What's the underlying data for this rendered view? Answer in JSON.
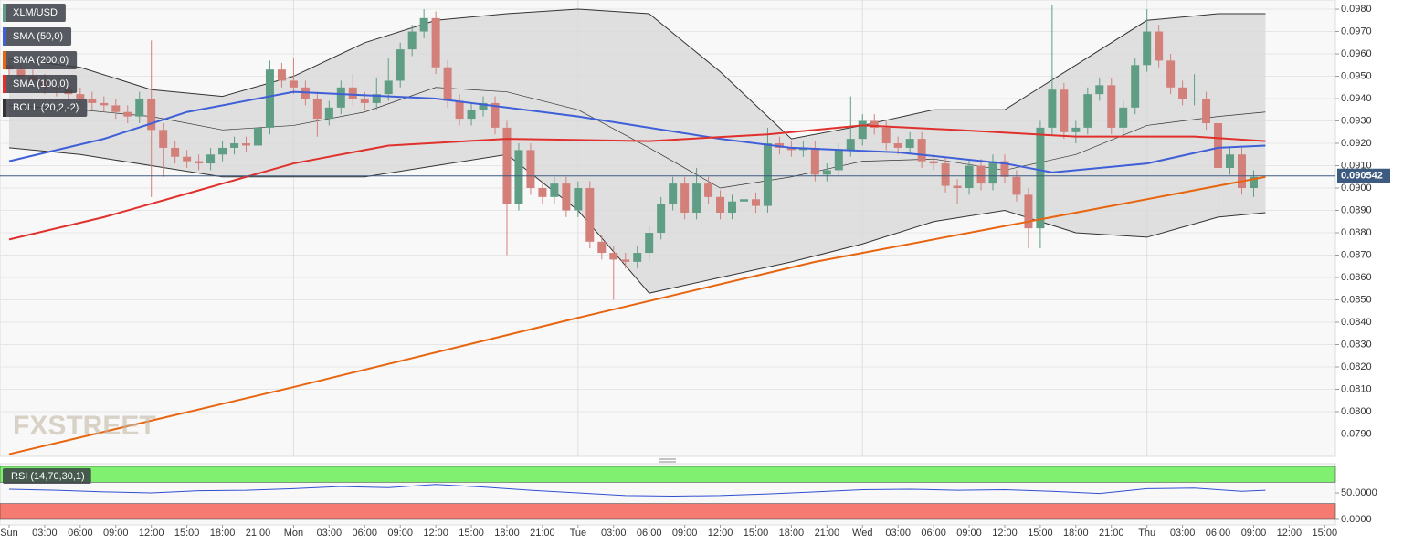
{
  "chart_data": [
    {
      "type": "candlestick",
      "name": "XLM/USD",
      "up_color": "#5f9e84",
      "down_color": "#d3807a",
      "watermark": "FXSTREET",
      "xlim": [
        -0.77,
        111.9
      ],
      "ylim": [
        0.078,
        0.09841
      ],
      "yticks": [
        {
          "value": 0.098,
          "label": "0.0980"
        },
        {
          "value": 0.097,
          "label": "0.0970"
        },
        {
          "value": 0.096,
          "label": "0.0960"
        },
        {
          "value": 0.095,
          "label": "0.0950"
        },
        {
          "value": 0.094,
          "label": "0.0940"
        },
        {
          "value": 0.093,
          "label": "0.0930"
        },
        {
          "value": 0.092,
          "label": "0.0920"
        },
        {
          "value": 0.091,
          "label": "0.0910"
        },
        {
          "value": 0.09,
          "label": "0.0900"
        },
        {
          "value": 0.089,
          "label": "0.0890"
        },
        {
          "value": 0.088,
          "label": "0.0880"
        },
        {
          "value": 0.087,
          "label": "0.0870"
        },
        {
          "value": 0.086,
          "label": "0.0860"
        },
        {
          "value": 0.085,
          "label": "0.0850"
        },
        {
          "value": 0.084,
          "label": "0.0840"
        },
        {
          "value": 0.083,
          "label": "0.0830"
        },
        {
          "value": 0.082,
          "label": "0.0820"
        },
        {
          "value": 0.081,
          "label": "0.0810"
        },
        {
          "value": 0.08,
          "label": "0.0800"
        },
        {
          "value": 0.079,
          "label": "0.0790"
        }
      ],
      "grid": true,
      "last_price": 0.090542,
      "last_price_color": "#3d5a80",
      "x": [
        0,
        1,
        2,
        3,
        4,
        5,
        6,
        7,
        8,
        9,
        10,
        11,
        12,
        13,
        14,
        15,
        16,
        17,
        18,
        19,
        20,
        21,
        22,
        23,
        24,
        25,
        26,
        27,
        28,
        29,
        30,
        31,
        32,
        33,
        34,
        35,
        36,
        37,
        38,
        39,
        40,
        41,
        42,
        43,
        44,
        45,
        46,
        47,
        48,
        49,
        50,
        51,
        52,
        53,
        54,
        55,
        56,
        57,
        58,
        59,
        60,
        61,
        62,
        63,
        64,
        65,
        66,
        67,
        68,
        69,
        70,
        71,
        72,
        73,
        74,
        75,
        76,
        77,
        78,
        79,
        80,
        81,
        82,
        83,
        84,
        85,
        86,
        87,
        88,
        89,
        90,
        91,
        92,
        93,
        94,
        95,
        96,
        97,
        98,
        99,
        100,
        101,
        102,
        103,
        104,
        105
      ],
      "open": [
        0.0955,
        0.0953,
        0.095,
        0.0948,
        0.0945,
        0.0944,
        0.0942,
        0.094,
        0.0938,
        0.0937,
        0.0934,
        0.0932,
        0.094,
        0.0926,
        0.0918,
        0.0914,
        0.0912,
        0.0911,
        0.0915,
        0.0918,
        0.092,
        0.0919,
        0.0927,
        0.0953,
        0.0948,
        0.0945,
        0.094,
        0.0931,
        0.0936,
        0.0945,
        0.094,
        0.0938,
        0.0942,
        0.0948,
        0.0962,
        0.097,
        0.0976,
        0.0954,
        0.0939,
        0.0931,
        0.0935,
        0.0938,
        0.0927,
        0.0893,
        0.0917,
        0.09,
        0.0896,
        0.0902,
        0.089,
        0.09,
        0.0876,
        0.0871,
        0.0868,
        0.0867,
        0.0871,
        0.088,
        0.0893,
        0.0902,
        0.0889,
        0.0902,
        0.0896,
        0.0889,
        0.0894,
        0.0895,
        0.0892,
        0.092,
        0.0918,
        0.0917,
        0.0918,
        0.0906,
        0.0908,
        0.0917,
        0.0922,
        0.093,
        0.0927,
        0.092,
        0.0918,
        0.0922,
        0.0912,
        0.0911,
        0.0901,
        0.09,
        0.091,
        0.0902,
        0.0912,
        0.0905,
        0.0897,
        0.0882,
        0.0927,
        0.0944,
        0.0925,
        0.0927,
        0.0942,
        0.0946,
        0.0927,
        0.0936,
        0.0955,
        0.097,
        0.0957,
        0.0945,
        0.094,
        0.094,
        0.0929,
        0.0909,
        0.0915,
        0.09
      ],
      "high": [
        0.0958,
        0.0956,
        0.0953,
        0.0951,
        0.0948,
        0.0947,
        0.0945,
        0.0943,
        0.0941,
        0.094,
        0.0937,
        0.0943,
        0.0966,
        0.0929,
        0.0921,
        0.0917,
        0.0915,
        0.0918,
        0.0921,
        0.0923,
        0.0923,
        0.093,
        0.0957,
        0.0956,
        0.0958,
        0.0948,
        0.0943,
        0.0939,
        0.0948,
        0.0951,
        0.0943,
        0.0949,
        0.0958,
        0.0965,
        0.0973,
        0.098,
        0.0979,
        0.0957,
        0.0942,
        0.0938,
        0.0941,
        0.0941,
        0.093,
        0.092,
        0.092,
        0.0903,
        0.0905,
        0.0905,
        0.0903,
        0.0903,
        0.0879,
        0.0874,
        0.0871,
        0.0874,
        0.0883,
        0.0896,
        0.0905,
        0.0905,
        0.0909,
        0.0905,
        0.0899,
        0.0897,
        0.0898,
        0.0898,
        0.0927,
        0.0923,
        0.0921,
        0.0921,
        0.0921,
        0.0911,
        0.092,
        0.0941,
        0.0933,
        0.0933,
        0.093,
        0.0923,
        0.0925,
        0.0925,
        0.0915,
        0.0914,
        0.0904,
        0.0913,
        0.0913,
        0.0915,
        0.0915,
        0.0908,
        0.09,
        0.093,
        0.0982,
        0.0947,
        0.093,
        0.0945,
        0.0949,
        0.0949,
        0.0939,
        0.0958,
        0.098,
        0.0973,
        0.096,
        0.0948,
        0.0951,
        0.0943,
        0.0932,
        0.0918,
        0.0918,
        0.0908
      ],
      "low": [
        0.095,
        0.0947,
        0.0945,
        0.0942,
        0.0941,
        0.0939,
        0.0937,
        0.0935,
        0.0934,
        0.0931,
        0.0929,
        0.0929,
        0.0896,
        0.0905,
        0.0911,
        0.0909,
        0.0908,
        0.0908,
        0.0912,
        0.0915,
        0.0916,
        0.0916,
        0.0924,
        0.0945,
        0.0942,
        0.0937,
        0.0923,
        0.0928,
        0.0933,
        0.0937,
        0.0935,
        0.0935,
        0.0939,
        0.0945,
        0.0959,
        0.0967,
        0.0951,
        0.0936,
        0.0928,
        0.0928,
        0.0932,
        0.0924,
        0.087,
        0.089,
        0.0897,
        0.0893,
        0.0893,
        0.0887,
        0.0887,
        0.0873,
        0.0868,
        0.085,
        0.0864,
        0.0864,
        0.0868,
        0.0877,
        0.089,
        0.0886,
        0.0886,
        0.0893,
        0.0886,
        0.0886,
        0.0891,
        0.0889,
        0.0889,
        0.0915,
        0.0914,
        0.0914,
        0.0903,
        0.0903,
        0.0905,
        0.0914,
        0.0919,
        0.0924,
        0.0917,
        0.0915,
        0.0915,
        0.0909,
        0.0908,
        0.0898,
        0.0893,
        0.0897,
        0.0899,
        0.0899,
        0.0902,
        0.0894,
        0.0873,
        0.0873,
        0.0924,
        0.0922,
        0.092,
        0.0924,
        0.0939,
        0.0924,
        0.0924,
        0.0933,
        0.0952,
        0.0954,
        0.0942,
        0.0937,
        0.0937,
        0.0926,
        0.0886,
        0.0906,
        0.0897,
        0.0896
      ],
      "close": [
        0.0953,
        0.095,
        0.0948,
        0.0945,
        0.0944,
        0.0942,
        0.094,
        0.0938,
        0.0937,
        0.0934,
        0.0932,
        0.094,
        0.0926,
        0.0918,
        0.0914,
        0.0912,
        0.0911,
        0.0915,
        0.0918,
        0.092,
        0.0919,
        0.0927,
        0.0953,
        0.0948,
        0.0945,
        0.094,
        0.0931,
        0.0936,
        0.0945,
        0.094,
        0.0938,
        0.0942,
        0.0948,
        0.0962,
        0.097,
        0.0976,
        0.0954,
        0.0939,
        0.0931,
        0.0935,
        0.0938,
        0.0927,
        0.0893,
        0.0917,
        0.09,
        0.0896,
        0.0902,
        0.089,
        0.09,
        0.0876,
        0.0871,
        0.0868,
        0.0867,
        0.0871,
        0.088,
        0.0893,
        0.0902,
        0.0889,
        0.0902,
        0.0896,
        0.0889,
        0.0894,
        0.0895,
        0.0892,
        0.092,
        0.0918,
        0.0917,
        0.0918,
        0.0906,
        0.0908,
        0.0917,
        0.0922,
        0.093,
        0.0927,
        0.092,
        0.0918,
        0.0922,
        0.0912,
        0.0911,
        0.0901,
        0.09,
        0.091,
        0.0902,
        0.0912,
        0.0905,
        0.0897,
        0.0882,
        0.0927,
        0.0944,
        0.0925,
        0.0927,
        0.0942,
        0.0946,
        0.0927,
        0.0936,
        0.0955,
        0.097,
        0.0957,
        0.0945,
        0.094,
        0.094,
        0.0929,
        0.0909,
        0.0915,
        0.09,
        0.0905
      ],
      "series": [
        {
          "name": "SMA (50,0)",
          "color": "#3f5fd8",
          "x": [
            0,
            8,
            15,
            24,
            36,
            48,
            60,
            66,
            75,
            84,
            88,
            96,
            102,
            106
          ],
          "values": [
            0.0912,
            0.0922,
            0.0934,
            0.0943,
            0.094,
            0.0932,
            0.0922,
            0.0918,
            0.0916,
            0.0911,
            0.0907,
            0.0911,
            0.0918,
            0.0919
          ]
        },
        {
          "name": "SMA (200,0)",
          "color": "#e8650f",
          "x": [
            0,
            24,
            48,
            68,
            87,
            106
          ],
          "values": [
            0.0781,
            0.0811,
            0.0842,
            0.0867,
            0.0886,
            0.0905
          ]
        },
        {
          "name": "SMA (100,0)",
          "color": "#e0302c",
          "x": [
            0,
            8,
            16,
            24,
            32,
            42,
            54,
            64,
            72,
            80,
            90,
            100,
            106
          ],
          "values": [
            0.0877,
            0.0887,
            0.0899,
            0.0911,
            0.0919,
            0.0922,
            0.0921,
            0.0924,
            0.0928,
            0.0926,
            0.0923,
            0.0923,
            0.0921
          ]
        },
        {
          "name": "BOLL (20,2,-2)",
          "color": "#333333",
          "x": [
            0,
            6,
            12,
            18,
            24,
            30,
            36,
            42,
            48,
            54,
            60,
            66,
            72,
            78,
            84,
            90,
            96,
            102,
            106
          ],
          "upper": [
            0.0958,
            0.0954,
            0.0944,
            0.0941,
            0.095,
            0.0965,
            0.0975,
            0.0978,
            0.098,
            0.0978,
            0.0952,
            0.0922,
            0.0928,
            0.0935,
            0.0935,
            0.0955,
            0.0975,
            0.0978,
            0.0978
          ],
          "middle": [
            0.0937,
            0.0935,
            0.0932,
            0.0926,
            0.0928,
            0.0934,
            0.0945,
            0.0943,
            0.0935,
            0.0918,
            0.09,
            0.0905,
            0.0912,
            0.0913,
            0.0908,
            0.0915,
            0.0928,
            0.0932,
            0.0934
          ],
          "lower": [
            0.0918,
            0.0915,
            0.091,
            0.0905,
            0.0905,
            0.0905,
            0.091,
            0.0915,
            0.089,
            0.0853,
            0.086,
            0.0867,
            0.0875,
            0.0885,
            0.089,
            0.088,
            0.0878,
            0.0887,
            0.0889
          ]
        }
      ]
    },
    {
      "type": "line",
      "xlim": [
        -0.77,
        111.9
      ],
      "ylim": [
        0,
        100
      ],
      "yticks": [
        {
          "value": 50,
          "label": "50.0000"
        },
        {
          "value": 0,
          "label": "0.0000"
        }
      ],
      "band_levels": [
        70,
        30
      ],
      "band_colors": [
        "#80f070",
        "#f47a72"
      ],
      "xticks": [
        {
          "value": 0,
          "label": "Sun"
        },
        {
          "value": 3,
          "label": "03:00"
        },
        {
          "value": 6,
          "label": "06:00"
        },
        {
          "value": 9,
          "label": "09:00"
        },
        {
          "value": 12,
          "label": "12:00"
        },
        {
          "value": 15,
          "label": "15:00"
        },
        {
          "value": 18,
          "label": "18:00"
        },
        {
          "value": 21,
          "label": "21:00"
        },
        {
          "value": 24,
          "label": "Mon"
        },
        {
          "value": 27,
          "label": "03:00"
        },
        {
          "value": 30,
          "label": "06:00"
        },
        {
          "value": 33,
          "label": "09:00"
        },
        {
          "value": 36,
          "label": "12:00"
        },
        {
          "value": 39,
          "label": "15:00"
        },
        {
          "value": 42,
          "label": "18:00"
        },
        {
          "value": 45,
          "label": "21:00"
        },
        {
          "value": 48,
          "label": "Tue"
        },
        {
          "value": 51,
          "label": "03:00"
        },
        {
          "value": 54,
          "label": "06:00"
        },
        {
          "value": 57,
          "label": "09:00"
        },
        {
          "value": 60,
          "label": "12:00"
        },
        {
          "value": 63,
          "label": "15:00"
        },
        {
          "value": 66,
          "label": "18:00"
        },
        {
          "value": 69,
          "label": "21:00"
        },
        {
          "value": 72,
          "label": "Wed"
        },
        {
          "value": 75,
          "label": "03:00"
        },
        {
          "value": 78,
          "label": "06:00"
        },
        {
          "value": 81,
          "label": "09:00"
        },
        {
          "value": 84,
          "label": "12:00"
        },
        {
          "value": 87,
          "label": "15:00"
        },
        {
          "value": 90,
          "label": "18:00"
        },
        {
          "value": 93,
          "label": "21:00"
        },
        {
          "value": 96,
          "label": "Thu"
        },
        {
          "value": 99,
          "label": "03:00"
        },
        {
          "value": 102,
          "label": "06:00"
        },
        {
          "value": 105,
          "label": "09:00"
        },
        {
          "value": 108,
          "label": "12:00"
        },
        {
          "value": 111,
          "label": "15:00"
        }
      ],
      "series": [
        {
          "name": "RSI (14,70,30,1)",
          "color": "#3050d0",
          "x": [
            0,
            4,
            8,
            12,
            16,
            20,
            24,
            28,
            32,
            36,
            40,
            44,
            48,
            52,
            56,
            60,
            64,
            68,
            72,
            76,
            80,
            84,
            88,
            92,
            96,
            100,
            104,
            106
          ],
          "values": [
            57,
            55,
            52,
            50,
            54,
            55,
            58,
            62,
            60,
            66,
            61,
            55,
            50,
            45,
            44,
            45,
            48,
            52,
            56,
            57,
            55,
            56,
            53,
            49,
            58,
            59,
            53,
            55
          ]
        }
      ]
    }
  ]
}
